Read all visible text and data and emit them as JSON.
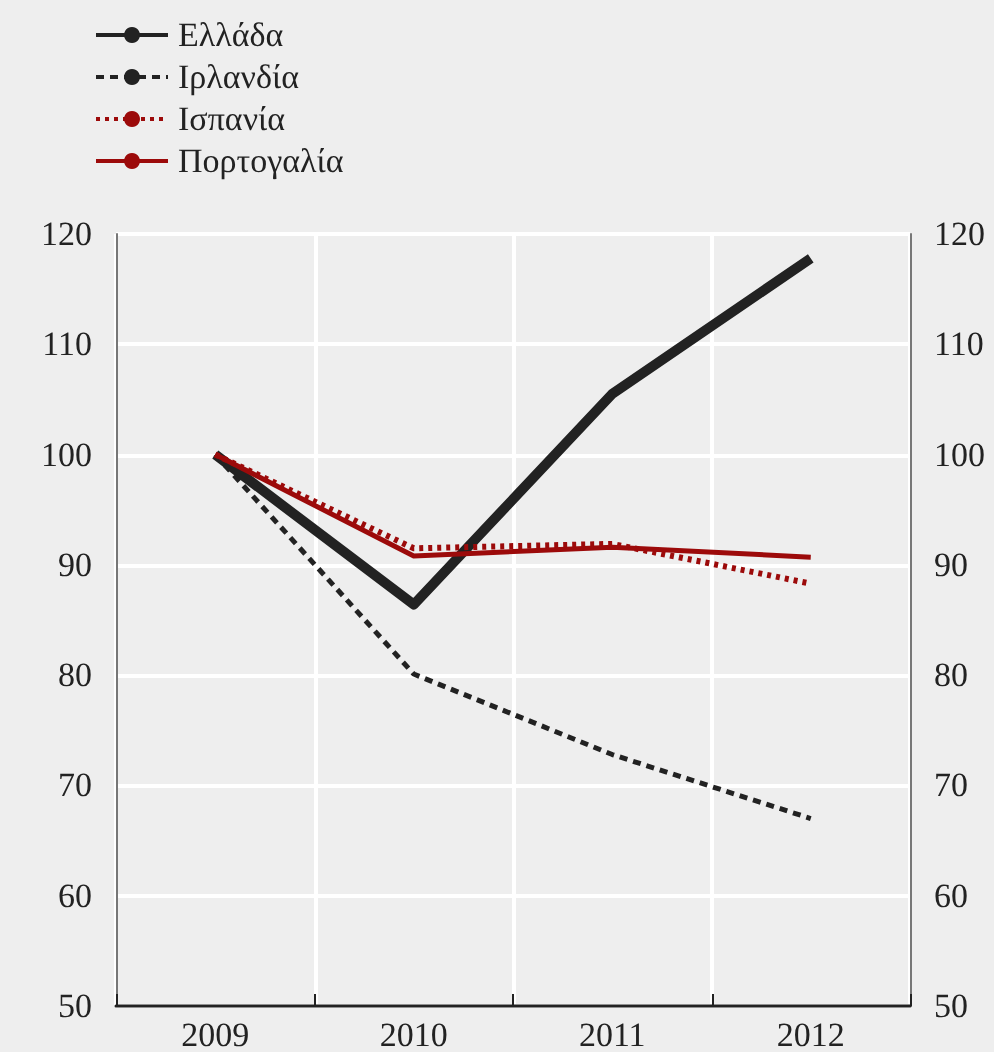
{
  "chart_data": {
    "type": "line",
    "categories": [
      "2009",
      "2010",
      "2011",
      "2012"
    ],
    "series": [
      {
        "name": "Ελλάδα",
        "color": "#222222",
        "line_style": "solid",
        "values": [
          100,
          86.4,
          105.5,
          117.8
        ]
      },
      {
        "name": "Ιρλανδία",
        "color": "#222222",
        "line_style": "dashed",
        "values": [
          100,
          80.1,
          72.8,
          67.0
        ]
      },
      {
        "name": "Ισπανία",
        "color": "#9c0a0a",
        "line_style": "dotted",
        "values": [
          100,
          91.5,
          91.9,
          88.3
        ]
      },
      {
        "name": "Πορτογαλία",
        "color": "#9c0a0a",
        "line_style": "solid",
        "values": [
          100,
          90.8,
          91.6,
          90.7
        ]
      }
    ],
    "ylim": [
      50,
      120
    ],
    "yticks": [
      50,
      60,
      70,
      80,
      90,
      100,
      110,
      120
    ],
    "y2lim": [
      50,
      120
    ],
    "y2ticks": [
      50,
      60,
      70,
      80,
      90,
      100,
      110,
      120
    ],
    "grid": true,
    "legend": "top left",
    "marker": "none"
  }
}
